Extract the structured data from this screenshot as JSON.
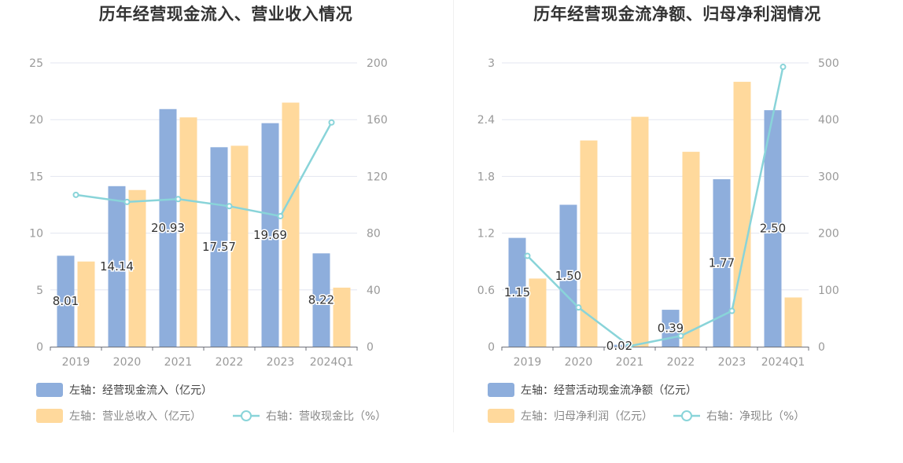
{
  "colors": {
    "blue": "#8eaedc",
    "orange": "#ffd99c",
    "line": "#89d4d9",
    "grid": "#e3e6f0",
    "axis_text": "#999999",
    "label_text": "#333333",
    "legend_text": "#444444",
    "legend_text_muted": "#888888"
  },
  "chart_data": [
    {
      "type": "bar",
      "title": "历年经营现金流入、营业收入情况",
      "categories": [
        "2019",
        "2020",
        "2021",
        "2022",
        "2023",
        "2024Q1"
      ],
      "left_axis": {
        "ylim": [
          0,
          25
        ],
        "ticks": [
          "0",
          "5",
          "10",
          "15",
          "20",
          "25"
        ]
      },
      "right_axis": {
        "ylim": [
          0,
          200
        ],
        "ticks": [
          "0",
          "40",
          "80",
          "120",
          "160",
          "200"
        ]
      },
      "series": [
        {
          "name": "左轴：经营现金流入（亿元）",
          "type": "bar",
          "axis": "left",
          "values": [
            8.01,
            14.14,
            20.93,
            17.57,
            19.69,
            8.22
          ],
          "labels": [
            "8.01",
            "14.14",
            "20.93",
            "17.57",
            "19.69",
            "8.22"
          ]
        },
        {
          "name": "左轴：营业总收入（亿元）",
          "type": "bar",
          "axis": "left",
          "values": [
            7.5,
            13.8,
            20.2,
            17.7,
            21.5,
            5.2
          ]
        },
        {
          "name": "右轴：营收现金比（%）",
          "type": "line",
          "axis": "right",
          "values": [
            107,
            102,
            104,
            99,
            92,
            158
          ]
        }
      ],
      "legend_placement": "bottom-left",
      "grid": true
    },
    {
      "type": "bar",
      "title": "历年经营现金流净额、归母净利润情况",
      "categories": [
        "2019",
        "2020",
        "2021",
        "2022",
        "2023",
        "2024Q1"
      ],
      "left_axis": {
        "ylim": [
          0,
          3
        ],
        "ticks": [
          "0",
          "0.6",
          "1.2",
          "1.8",
          "2.4",
          "3"
        ]
      },
      "right_axis": {
        "ylim": [
          0,
          500
        ],
        "ticks": [
          "0",
          "100",
          "200",
          "300",
          "400",
          "500"
        ]
      },
      "series": [
        {
          "name": "左轴：经营活动现金流净额（亿元）",
          "type": "bar",
          "axis": "left",
          "values": [
            1.15,
            1.5,
            0.02,
            0.39,
            1.77,
            2.5
          ],
          "labels": [
            "1.15",
            "1.50",
            "0.02",
            "0.39",
            "1.77",
            "2.50"
          ]
        },
        {
          "name": "左轴：归母净利润（亿元）",
          "type": "bar",
          "axis": "left",
          "values": [
            0.72,
            2.18,
            2.43,
            2.06,
            2.8,
            0.52
          ]
        },
        {
          "name": "右轴：净现比（%）",
          "type": "line",
          "axis": "right",
          "values": [
            160,
            69,
            1,
            19,
            63,
            493
          ]
        }
      ],
      "legend_placement": "bottom-left",
      "grid": true
    }
  ]
}
